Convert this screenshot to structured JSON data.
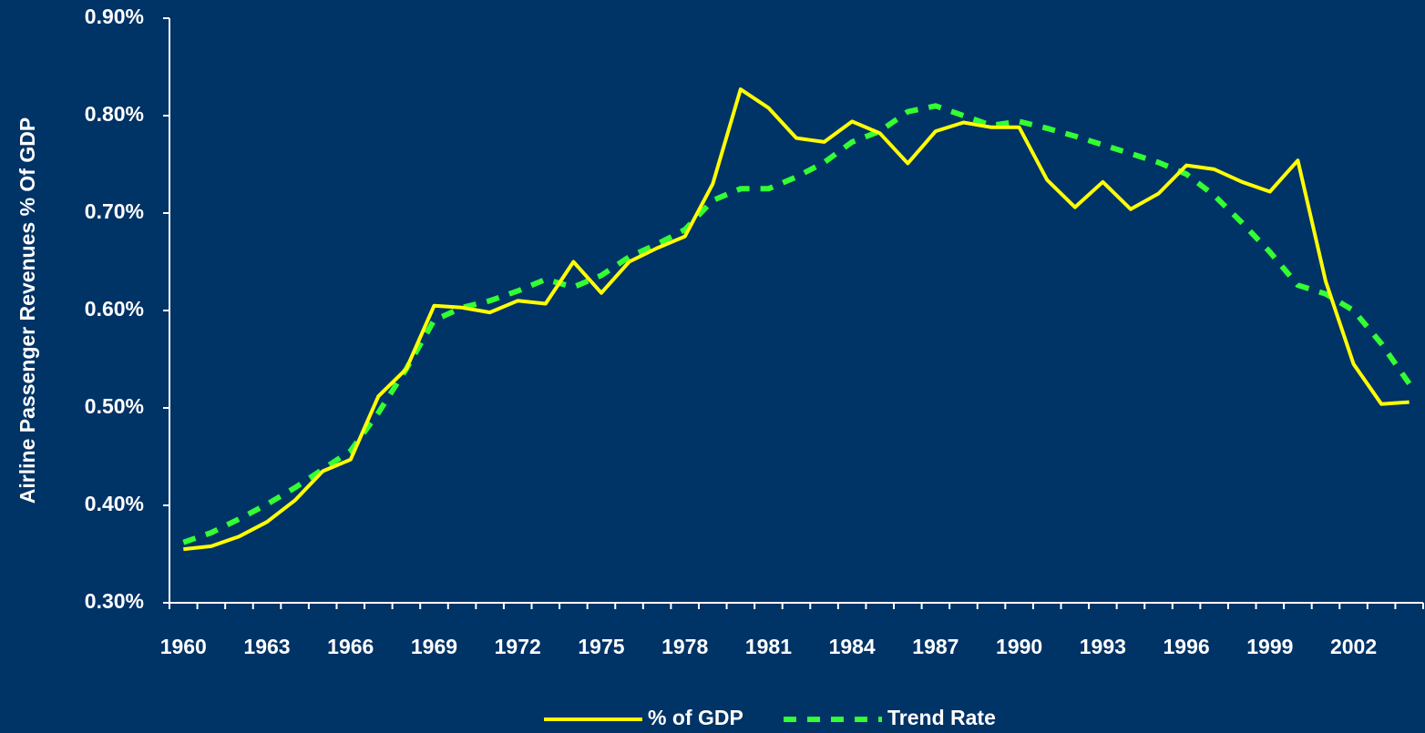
{
  "chart_data": {
    "type": "line",
    "y_label": "Airline Passenger Revenues % Of GDP",
    "categories": [
      "1960",
      null,
      null,
      "1963",
      null,
      null,
      "1966",
      null,
      null,
      "1969",
      null,
      null,
      "1972",
      null,
      null,
      "1975",
      null,
      null,
      "1978",
      null,
      null,
      "1981",
      null,
      null,
      "1984",
      null,
      null,
      "1987",
      null,
      null,
      "1990",
      null,
      null,
      "1993",
      null,
      null,
      "1996",
      null,
      null,
      "1999",
      null,
      null,
      "2002",
      null,
      null
    ],
    "series": [
      {
        "name": "% of GDP",
        "color": "#ffff00",
        "dash": false,
        "values": [
          0.355,
          0.358,
          0.368,
          0.383,
          0.405,
          0.435,
          0.447,
          0.512,
          0.54,
          0.605,
          0.603,
          0.598,
          0.61,
          0.607,
          0.65,
          0.618,
          0.65,
          0.664,
          0.676,
          0.73,
          0.827,
          0.808,
          0.777,
          0.773,
          0.794,
          0.782,
          0.751,
          0.784,
          0.793,
          0.788,
          0.788,
          0.734,
          0.706,
          0.732,
          0.704,
          0.72,
          0.749,
          0.745,
          0.732,
          0.722,
          0.754,
          0.63,
          0.545,
          0.504,
          0.506
        ]
      },
      {
        "name": "Trend Rate",
        "color": "#33ff33",
        "dash": true,
        "values": [
          0.362,
          0.372,
          0.386,
          0.401,
          0.418,
          0.437,
          0.456,
          0.495,
          0.54,
          0.59,
          0.603,
          0.61,
          0.62,
          0.632,
          0.624,
          0.636,
          0.655,
          0.668,
          0.683,
          0.713,
          0.725,
          0.725,
          0.737,
          0.752,
          0.773,
          0.784,
          0.804,
          0.81,
          0.8,
          0.79,
          0.794,
          0.787,
          0.779,
          0.77,
          0.761,
          0.752,
          0.74,
          0.718,
          0.69,
          0.66,
          0.626,
          0.617,
          0.6,
          0.566,
          0.525
        ]
      }
    ],
    "ylim": [
      0.3,
      0.9
    ],
    "yticks": [
      {
        "value": 0.3,
        "label": "0.30%"
      },
      {
        "value": 0.4,
        "label": "0.40%"
      },
      {
        "value": 0.5,
        "label": "0.50%"
      },
      {
        "value": 0.6,
        "label": "0.60%"
      },
      {
        "value": 0.7,
        "label": "0.70%"
      },
      {
        "value": 0.8,
        "label": "0.80%"
      },
      {
        "value": 0.9,
        "label": "0.90%"
      }
    ],
    "legend": "bottom"
  }
}
